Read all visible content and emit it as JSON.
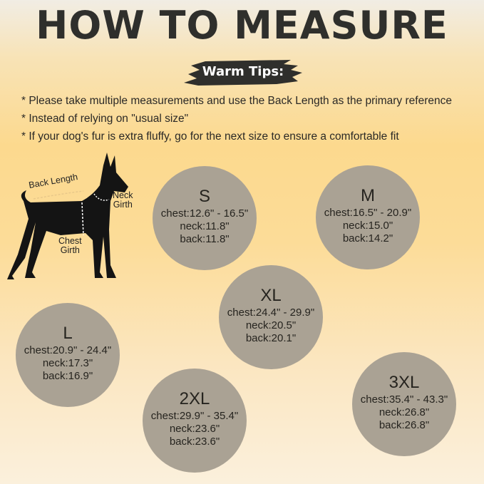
{
  "title": "HOW TO MEASURE",
  "tips": {
    "label": "Warm Tips:",
    "items": [
      "* Please take multiple measurements and use the Back Length as the primary reference",
      "* Instead of relying on \"usual size\"",
      "* If your dog's fur is extra fluffy, go for the next size to ensure a comfortable fit"
    ]
  },
  "diagram": {
    "back": "Back Length",
    "neck1": "Neck",
    "neck2": "Girth",
    "chest1": "Chest",
    "chest2": "Girth"
  },
  "sizes": [
    {
      "size": "S",
      "chest": "chest:12.6\" - 16.5\"",
      "neck": "neck:11.8\"",
      "back": "back:11.8\""
    },
    {
      "size": "M",
      "chest": "chest:16.5\" - 20.9\"",
      "neck": "neck:15.0\"",
      "back": "back:14.2\""
    },
    {
      "size": "XL",
      "chest": "chest:24.4\" - 29.9\"",
      "neck": "neck:20.5\"",
      "back": "back:20.1\""
    },
    {
      "size": "L",
      "chest": "chest:20.9\" - 24.4\"",
      "neck": "neck:17.3\"",
      "back": "back:16.9\""
    },
    {
      "size": "2XL",
      "chest": "chest:29.9\" - 35.4\"",
      "neck": "neck:23.6\"",
      "back": "back:23.6\""
    },
    {
      "size": "3XL",
      "chest": "chest:35.4\" - 43.3\"",
      "neck": "neck:26.8\"",
      "back": "back:26.8\""
    }
  ],
  "colors": {
    "circle": "#aaa294",
    "brush": "#2f2f2c",
    "background": "#fcd98e"
  }
}
